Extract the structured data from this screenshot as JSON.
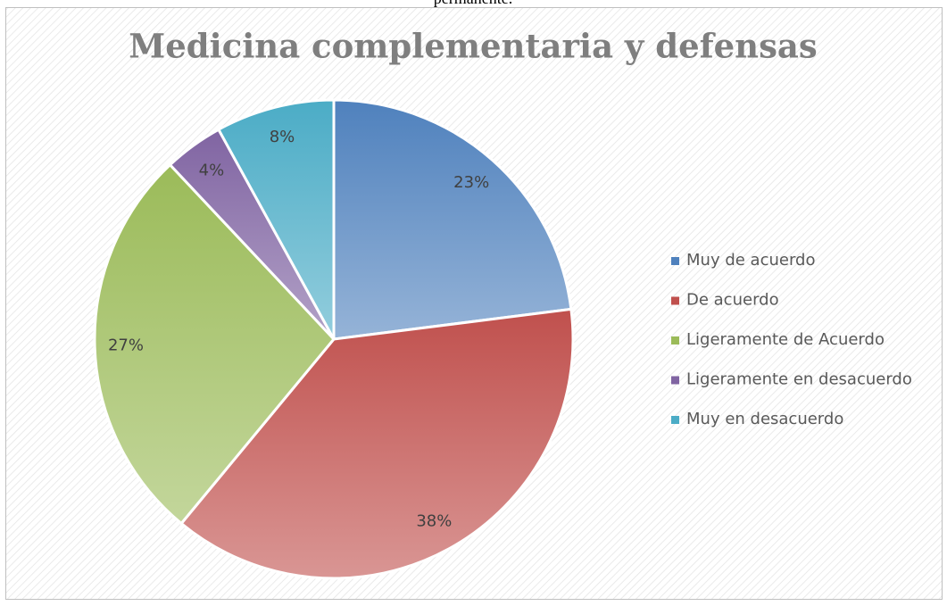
{
  "caption": "permanente.",
  "chart_data": {
    "type": "pie",
    "title": "Medicina complementaria y defensas",
    "categories": [
      "Muy de acuerdo",
      "De acuerdo",
      "Ligeramente de Acuerdo",
      "Ligeramente en desacuerdo",
      "Muy en desacuerdo"
    ],
    "values": [
      23,
      38,
      27,
      4,
      8
    ],
    "value_labels": [
      "23%",
      "38%",
      "27%",
      "4%",
      "8%"
    ],
    "colors": [
      "#4f81bd",
      "#c0504d",
      "#9bbb59",
      "#8064a2",
      "#4bacc6"
    ],
    "legend": "right"
  }
}
